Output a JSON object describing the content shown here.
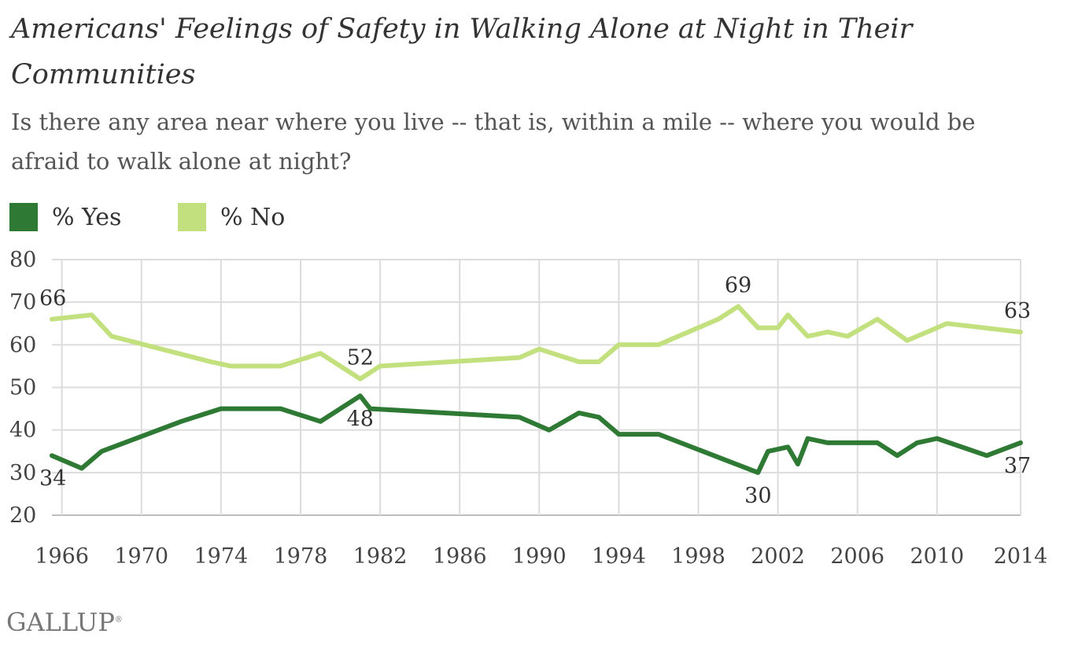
{
  "chart_data": {
    "type": "line",
    "title": "Americans' Feelings of Safety in Walking Alone at Night in Their Communities",
    "subtitle": "Is there any area near where you live -- that is, within a mile -- where you would be afraid to walk alone at night?",
    "xlim": [
      1965.5,
      2014.2
    ],
    "ylim": [
      20,
      80
    ],
    "yticks": [
      20,
      30,
      40,
      50,
      60,
      70,
      80
    ],
    "xticks": [
      1966,
      1970,
      1974,
      1978,
      1982,
      1986,
      1990,
      1994,
      1998,
      2002,
      2006,
      2010,
      2014
    ],
    "grid": true,
    "legend_position": "top-left",
    "series": [
      {
        "name": "% Yes",
        "color": "#2e7a34",
        "points": [
          [
            1965.5,
            34
          ],
          [
            1967.0,
            31
          ],
          [
            1968.0,
            35
          ],
          [
            1972.0,
            42
          ],
          [
            1974.0,
            45
          ],
          [
            1977.0,
            45
          ],
          [
            1979.0,
            42
          ],
          [
            1981.0,
            48
          ],
          [
            1981.5,
            45
          ],
          [
            1989.0,
            43
          ],
          [
            1990.5,
            40
          ],
          [
            1992.0,
            44
          ],
          [
            1993.0,
            43
          ],
          [
            1994.0,
            39
          ],
          [
            1996.0,
            39
          ],
          [
            2001.0,
            30
          ],
          [
            2001.5,
            35
          ],
          [
            2002.5,
            36
          ],
          [
            2003.0,
            32
          ],
          [
            2003.5,
            38
          ],
          [
            2004.5,
            37
          ],
          [
            2007.0,
            37
          ],
          [
            2008.0,
            34
          ],
          [
            2009.0,
            37
          ],
          [
            2010.0,
            38
          ],
          [
            2012.5,
            34
          ],
          [
            2014.2,
            37
          ]
        ]
      },
      {
        "name": "% No",
        "color": "#c3e07e",
        "points": [
          [
            1965.5,
            66
          ],
          [
            1967.5,
            67
          ],
          [
            1968.5,
            62
          ],
          [
            1973.5,
            56
          ],
          [
            1974.5,
            55
          ],
          [
            1977.0,
            55
          ],
          [
            1979.0,
            58
          ],
          [
            1981.0,
            52
          ],
          [
            1982.0,
            55
          ],
          [
            1989.0,
            57
          ],
          [
            1990.0,
            59
          ],
          [
            1992.0,
            56
          ],
          [
            1993.0,
            56
          ],
          [
            1994.0,
            60
          ],
          [
            1996.0,
            60
          ],
          [
            1999.0,
            66
          ],
          [
            2000.0,
            69
          ],
          [
            2001.0,
            64
          ],
          [
            2002.0,
            64
          ],
          [
            2002.5,
            67
          ],
          [
            2003.5,
            62
          ],
          [
            2004.5,
            63
          ],
          [
            2005.5,
            62
          ],
          [
            2007.0,
            66
          ],
          [
            2008.5,
            61
          ],
          [
            2009.5,
            63
          ],
          [
            2010.5,
            65
          ],
          [
            2014.2,
            63
          ]
        ]
      }
    ],
    "annotations": [
      {
        "series": "% No",
        "x": 1965.5,
        "y": 66,
        "text": "66",
        "position": "above"
      },
      {
        "series": "% No",
        "x": 1981.0,
        "y": 52,
        "text": "52",
        "position": "above"
      },
      {
        "series": "% No",
        "x": 2000.0,
        "y": 69,
        "text": "69",
        "position": "above"
      },
      {
        "series": "% No",
        "x": 2014.2,
        "y": 63,
        "text": "63",
        "position": "above"
      },
      {
        "series": "% Yes",
        "x": 1965.5,
        "y": 34,
        "text": "34",
        "position": "below"
      },
      {
        "series": "% Yes",
        "x": 1981.0,
        "y": 48,
        "text": "48",
        "position": "below"
      },
      {
        "series": "% Yes",
        "x": 2001.0,
        "y": 30,
        "text": "30",
        "position": "below"
      },
      {
        "series": "% Yes",
        "x": 2014.2,
        "y": 37,
        "text": "37",
        "position": "below"
      }
    ]
  },
  "brand": "GALLUP",
  "brand_mark": "®"
}
